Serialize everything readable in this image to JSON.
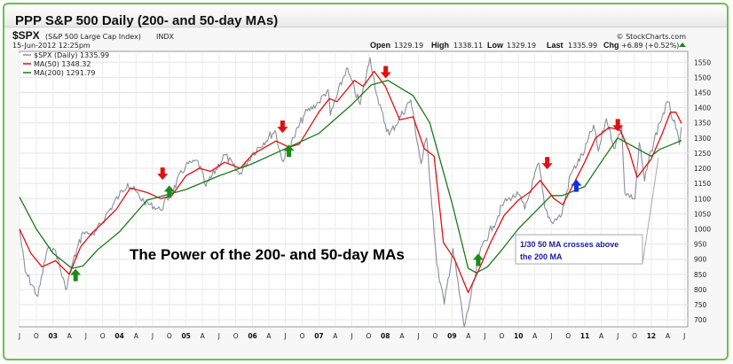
{
  "window": {
    "title": "PPP S&P 500 Daily (200- and 50-day MAs)"
  },
  "header": {
    "symbol": "$SPX",
    "name": "(S&P 500 Large Cap Index)",
    "exchange": "INDX",
    "credit": "© StockCharts.com",
    "timestamp": "15-Jun-2012 12:25pm",
    "open_label": "Open",
    "open": "1329.19",
    "high_label": "High",
    "high": "1338.11",
    "low_label": "Low",
    "low": "1329.19",
    "last_label": "Last",
    "last": "1335.99",
    "chg_label": "Chg",
    "chg": "+6.89 (+0.52%)"
  },
  "colors": {
    "price": "#8a8f9c",
    "ma50": "#e01010",
    "ma200": "#1a7a1a",
    "up_arrow": "#1a8a1a",
    "down_arrow": "#e01010",
    "blue_arrow": "#1133dd",
    "annotation_text": "#1a1aa6",
    "frame": "#6cc04a"
  },
  "annotation": {
    "headline": "The Power of the 200-  and 50-day  MAs",
    "callout_line1": "1/30 50 MA crosses above",
    "callout_line2": "the 200 MA"
  },
  "chart_data": {
    "type": "line",
    "title": "PPP S&P 500 Daily (200- and 50-day MAs)",
    "xlabel": "",
    "ylabel": "",
    "x_range": [
      "2002-07-01",
      "2012-06-15"
    ],
    "ylim": [
      680,
      1580
    ],
    "y_ticks": [
      700,
      750,
      800,
      850,
      900,
      950,
      1000,
      1050,
      1100,
      1150,
      1200,
      1250,
      1300,
      1350,
      1400,
      1450,
      1500,
      1550
    ],
    "y_axis_side": "right",
    "grid": true,
    "legend_position": "top-left",
    "x_ticks": [
      {
        "date": "2002-07-01",
        "label": "J",
        "bold": false
      },
      {
        "date": "2002-10-01",
        "label": "O",
        "bold": false
      },
      {
        "date": "2003-01-01",
        "label": "03",
        "bold": true
      },
      {
        "date": "2003-04-01",
        "label": "A",
        "bold": false
      },
      {
        "date": "2003-07-01",
        "label": "J",
        "bold": false
      },
      {
        "date": "2003-10-01",
        "label": "O",
        "bold": false
      },
      {
        "date": "2004-01-01",
        "label": "04",
        "bold": true
      },
      {
        "date": "2004-04-01",
        "label": "A",
        "bold": false
      },
      {
        "date": "2004-07-01",
        "label": "J",
        "bold": false
      },
      {
        "date": "2004-10-01",
        "label": "O",
        "bold": false
      },
      {
        "date": "2005-01-01",
        "label": "05",
        "bold": true
      },
      {
        "date": "2005-04-01",
        "label": "A",
        "bold": false
      },
      {
        "date": "2005-07-01",
        "label": "J",
        "bold": false
      },
      {
        "date": "2005-10-01",
        "label": "O",
        "bold": false
      },
      {
        "date": "2006-01-01",
        "label": "06",
        "bold": true
      },
      {
        "date": "2006-04-01",
        "label": "A",
        "bold": false
      },
      {
        "date": "2006-07-01",
        "label": "J",
        "bold": false
      },
      {
        "date": "2006-10-01",
        "label": "O",
        "bold": false
      },
      {
        "date": "2007-01-01",
        "label": "07",
        "bold": true
      },
      {
        "date": "2007-04-01",
        "label": "A",
        "bold": false
      },
      {
        "date": "2007-07-01",
        "label": "J",
        "bold": false
      },
      {
        "date": "2007-10-01",
        "label": "O",
        "bold": false
      },
      {
        "date": "2008-01-01",
        "label": "08",
        "bold": true
      },
      {
        "date": "2008-04-01",
        "label": "A",
        "bold": false
      },
      {
        "date": "2008-07-01",
        "label": "J",
        "bold": false
      },
      {
        "date": "2008-10-01",
        "label": "O",
        "bold": false
      },
      {
        "date": "2009-01-01",
        "label": "09",
        "bold": true
      },
      {
        "date": "2009-04-01",
        "label": "A",
        "bold": false
      },
      {
        "date": "2009-07-01",
        "label": "J",
        "bold": false
      },
      {
        "date": "2009-10-01",
        "label": "O",
        "bold": false
      },
      {
        "date": "2010-01-01",
        "label": "10",
        "bold": true
      },
      {
        "date": "2010-04-01",
        "label": "A",
        "bold": false
      },
      {
        "date": "2010-07-01",
        "label": "J",
        "bold": false
      },
      {
        "date": "2010-10-01",
        "label": "O",
        "bold": false
      },
      {
        "date": "2011-01-01",
        "label": "11",
        "bold": true
      },
      {
        "date": "2011-04-01",
        "label": "A",
        "bold": false
      },
      {
        "date": "2011-07-01",
        "label": "J",
        "bold": false
      },
      {
        "date": "2011-10-01",
        "label": "O",
        "bold": false
      },
      {
        "date": "2012-01-01",
        "label": "12",
        "bold": true
      },
      {
        "date": "2012-04-01",
        "label": "A",
        "bold": false
      },
      {
        "date": "2012-07-01",
        "label": "J",
        "bold": false
      }
    ],
    "legend": [
      {
        "label": "$SPX (Daily) 1335.99",
        "color": "#8a8f9c"
      },
      {
        "label": "MA(50) 1348.32",
        "color": "#e01010"
      },
      {
        "label": "MA(200) 1291.79",
        "color": "#1a7a1a"
      }
    ],
    "series": [
      {
        "name": "$SPX (Daily)",
        "x": [
          "2002-07-01",
          "2002-08-01",
          "2002-10-10",
          "2002-12-01",
          "2003-01-15",
          "2003-03-11",
          "2003-04-15",
          "2003-06-15",
          "2003-08-15",
          "2003-10-15",
          "2003-12-31",
          "2004-02-15",
          "2004-05-15",
          "2004-08-12",
          "2004-10-15",
          "2004-12-31",
          "2005-03-07",
          "2005-04-20",
          "2005-08-01",
          "2005-10-20",
          "2005-12-31",
          "2006-05-05",
          "2006-06-13",
          "2006-08-15",
          "2006-10-15",
          "2006-12-31",
          "2007-02-20",
          "2007-03-05",
          "2007-06-01",
          "2007-08-15",
          "2007-10-09",
          "2007-11-26",
          "2008-01-22",
          "2008-05-19",
          "2008-07-15",
          "2008-08-15",
          "2008-10-10",
          "2008-11-20",
          "2009-01-06",
          "2009-03-09",
          "2009-06-15",
          "2009-08-15",
          "2009-10-15",
          "2009-12-31",
          "2010-02-05",
          "2010-04-23",
          "2010-05-25",
          "2010-07-02",
          "2010-08-27",
          "2010-10-15",
          "2010-12-31",
          "2011-02-18",
          "2011-03-16",
          "2011-04-29",
          "2011-06-15",
          "2011-07-22",
          "2011-08-08",
          "2011-10-03",
          "2011-10-27",
          "2011-11-25",
          "2011-12-31",
          "2012-02-15",
          "2012-04-02",
          "2012-05-15",
          "2012-06-04",
          "2012-06-15"
        ],
        "values": [
          1000,
          860,
          777,
          935,
          930,
          800,
          880,
          990,
          980,
          1040,
          1112,
          1150,
          1090,
          1063,
          1120,
          1212,
          1225,
          1140,
          1245,
          1180,
          1248,
          1325,
          1225,
          1300,
          1380,
          1418,
          1460,
          1375,
          1530,
          1410,
          1565,
          1410,
          1310,
          1426,
          1215,
          1300,
          880,
          752,
          935,
          676,
          945,
          1010,
          1090,
          1115,
          1065,
          1217,
          1070,
          1022,
          1047,
          1180,
          1258,
          1343,
          1256,
          1364,
          1265,
          1340,
          1120,
          1099,
          1285,
          1158,
          1258,
          1350,
          1419,
          1330,
          1278,
          1336
        ]
      },
      {
        "name": "MA(50)",
        "x": [
          "2002-07-01",
          "2002-09-01",
          "2002-11-01",
          "2003-01-15",
          "2003-04-01",
          "2003-06-01",
          "2003-08-01",
          "2003-10-01",
          "2003-12-15",
          "2004-03-01",
          "2004-06-01",
          "2004-08-15",
          "2004-10-15",
          "2004-12-31",
          "2005-03-15",
          "2005-05-15",
          "2005-08-01",
          "2005-10-25",
          "2005-12-31",
          "2006-05-10",
          "2006-07-20",
          "2006-09-15",
          "2006-12-31",
          "2007-02-28",
          "2007-04-10",
          "2007-07-15",
          "2007-09-01",
          "2007-10-31",
          "2008-01-01",
          "2008-03-20",
          "2008-06-01",
          "2008-08-01",
          "2008-09-25",
          "2008-11-15",
          "2009-01-15",
          "2009-03-31",
          "2009-06-01",
          "2009-08-01",
          "2009-10-15",
          "2009-12-31",
          "2010-03-01",
          "2010-05-01",
          "2010-07-15",
          "2010-09-01",
          "2010-11-01",
          "2010-12-31",
          "2011-03-01",
          "2011-05-15",
          "2011-07-15",
          "2011-08-31",
          "2011-10-15",
          "2011-12-31",
          "2012-03-01",
          "2012-04-15",
          "2012-05-15",
          "2012-06-15"
        ],
        "values": [
          1000,
          920,
          875,
          895,
          850,
          940,
          985,
          1020,
          1065,
          1135,
          1120,
          1100,
          1110,
          1175,
          1200,
          1190,
          1220,
          1200,
          1245,
          1290,
          1270,
          1280,
          1385,
          1430,
          1420,
          1490,
          1470,
          1520,
          1470,
          1360,
          1370,
          1265,
          1240,
          955,
          900,
          790,
          870,
          955,
          1045,
          1095,
          1120,
          1160,
          1100,
          1080,
          1150,
          1220,
          1300,
          1335,
          1325,
          1260,
          1170,
          1230,
          1315,
          1385,
          1385,
          1348
        ]
      },
      {
        "name": "MA(200)",
        "x": [
          "2002-07-01",
          "2002-10-01",
          "2003-01-01",
          "2003-04-15",
          "2003-06-15",
          "2003-09-01",
          "2003-12-31",
          "2004-06-01",
          "2004-12-31",
          "2005-06-30",
          "2005-12-31",
          "2006-07-01",
          "2006-12-31",
          "2007-06-30",
          "2007-10-15",
          "2008-01-15",
          "2008-06-01",
          "2008-09-01",
          "2009-01-01",
          "2009-03-31",
          "2009-05-15",
          "2009-07-15",
          "2009-10-01",
          "2009-12-31",
          "2010-06-30",
          "2010-08-30",
          "2010-12-31",
          "2011-03-31",
          "2011-06-30",
          "2011-09-30",
          "2011-12-31",
          "2012-02-15",
          "2012-06-15"
        ],
        "values": [
          1105,
          1000,
          920,
          870,
          878,
          930,
          990,
          1095,
          1130,
          1175,
          1215,
          1265,
          1315,
          1410,
          1475,
          1490,
          1440,
          1350,
          1085,
          870,
          855,
          875,
          930,
          1000,
          1110,
          1110,
          1140,
          1220,
          1300,
          1270,
          1240,
          1262,
          1292
        ]
      }
    ],
    "signals": [
      {
        "date": "2003-05-05",
        "price": 845,
        "direction": "up",
        "color": "green"
      },
      {
        "date": "2004-08-25",
        "price": 1185,
        "direction": "down",
        "color": "red"
      },
      {
        "date": "2004-10-01",
        "price": 1120,
        "direction": "up",
        "color": "green"
      },
      {
        "date": "2006-06-15",
        "price": 1340,
        "direction": "down",
        "color": "red"
      },
      {
        "date": "2006-07-20",
        "price": 1255,
        "direction": "up",
        "color": "green"
      },
      {
        "date": "2008-01-03",
        "price": 1520,
        "direction": "down",
        "color": "red"
      },
      {
        "date": "2009-05-25",
        "price": 895,
        "direction": "up",
        "color": "green"
      },
      {
        "date": "2010-06-08",
        "price": 1220,
        "direction": "down",
        "color": "red"
      },
      {
        "date": "2010-11-15",
        "price": 1140,
        "direction": "up",
        "color": "blue"
      },
      {
        "date": "2011-07-01",
        "price": 1345,
        "direction": "down",
        "color": "red"
      }
    ]
  }
}
